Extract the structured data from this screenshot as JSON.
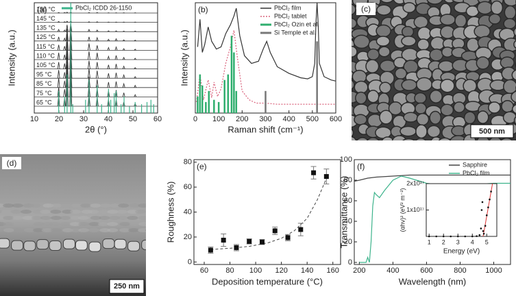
{
  "chart_data": [
    {
      "type": "line",
      "panel": "(a)",
      "stacked": true,
      "xlabel": "2θ (°)",
      "ylabel": "Intensity (a.u.)",
      "xlim": [
        10,
        60
      ],
      "xticks": [
        10,
        20,
        30,
        40,
        50,
        60
      ],
      "ylim": [
        0,
        100
      ],
      "y2lim": [
        0,
        100
      ],
      "x": [
        19.9,
        22.3,
        23.3,
        24.8,
        32.2,
        35.5,
        40.1,
        43.2,
        46.3,
        50.9
      ],
      "series": [
        {
          "name": "155 °C",
          "color": "#333333",
          "style": "peaks",
          "values": [
            2,
            2,
            3,
            3,
            2,
            2,
            1,
            1,
            1,
            1
          ]
        },
        {
          "name": "145 °C",
          "color": "#333333",
          "style": "peaks",
          "values": [
            3,
            2,
            4,
            4,
            2,
            2,
            1,
            1,
            1,
            1
          ]
        },
        {
          "name": "135 °C",
          "color": "#333333",
          "style": "peaks",
          "values": [
            8,
            6,
            25,
            30,
            8,
            6,
            3,
            3,
            2,
            2
          ]
        },
        {
          "name": "125 °C",
          "color": "#333333",
          "style": "peaks",
          "values": [
            15,
            10,
            45,
            50,
            15,
            12,
            6,
            8,
            4,
            3
          ]
        },
        {
          "name": "115 °C",
          "color": "#333333",
          "style": "peaks",
          "values": [
            20,
            15,
            60,
            65,
            25,
            18,
            10,
            12,
            6,
            4
          ]
        },
        {
          "name": "110 °C",
          "color": "#333333",
          "style": "peaks",
          "values": [
            25,
            18,
            65,
            70,
            30,
            25,
            12,
            15,
            8,
            5
          ]
        },
        {
          "name": "105 °C",
          "color": "#333333",
          "style": "peaks",
          "values": [
            25,
            20,
            70,
            75,
            30,
            25,
            15,
            18,
            10,
            5
          ]
        },
        {
          "name": "95 °C",
          "color": "#333333",
          "style": "peaks",
          "values": [
            30,
            22,
            80,
            85,
            35,
            28,
            18,
            20,
            12,
            6
          ]
        },
        {
          "name": "85 °C",
          "color": "#333333",
          "style": "peaks",
          "values": [
            35,
            25,
            85,
            90,
            40,
            30,
            20,
            22,
            14,
            8
          ]
        },
        {
          "name": "75 °C",
          "color": "#333333",
          "style": "peaks",
          "values": [
            35,
            28,
            90,
            95,
            45,
            32,
            22,
            25,
            15,
            8
          ]
        },
        {
          "name": "65 °C",
          "color": "#333333",
          "style": "peaks",
          "values": [
            40,
            30,
            95,
            100,
            45,
            35,
            25,
            25,
            15,
            10
          ]
        },
        {
          "name": "PbCl₂ ICDD 26-1150",
          "color": "#3cb38b",
          "style": "stick",
          "axis": "y2",
          "x": [
            19.9,
            22.3,
            23.3,
            24.8,
            25.6,
            30.8,
            32.2,
            35.5,
            37.3,
            40.1,
            41.0,
            42.4,
            43.2,
            45.2,
            46.4,
            48.6,
            50.9,
            53.5,
            55.7,
            57.3,
            58.4
          ],
          "values": [
            20,
            15,
            35,
            100,
            8,
            12,
            30,
            25,
            8,
            22,
            12,
            18,
            20,
            8,
            15,
            6,
            10,
            8,
            10,
            12,
            8
          ]
        }
      ]
    },
    {
      "type": "line",
      "panel": "(b)",
      "xlabel": "Raman shift (cm⁻¹)",
      "ylabel": "Intensity (a.u.)",
      "xlim": [
        0,
        600
      ],
      "xticks": [
        0,
        100,
        200,
        300,
        400,
        500,
        600
      ],
      "ylim": [
        0,
        100
      ],
      "series": [
        {
          "name": "PbCl₂ film",
          "color": "#333333",
          "style": "line",
          "x": [
            10,
            20,
            30,
            40,
            55,
            70,
            90,
            110,
            130,
            150,
            165,
            175,
            190,
            210,
            240,
            270,
            290,
            305,
            320,
            350,
            400,
            450,
            480,
            500,
            510,
            515,
            520,
            525,
            530,
            550,
            580,
            600
          ],
          "values": [
            60,
            85,
            55,
            62,
            78,
            65,
            58,
            60,
            72,
            80,
            88,
            95,
            70,
            52,
            45,
            47,
            58,
            65,
            55,
            42,
            36,
            32,
            31,
            33,
            45,
            80,
            100,
            80,
            45,
            33,
            30,
            29
          ]
        },
        {
          "name": "PbCl₂ tablet",
          "color": "#d9607a",
          "style": "dotted",
          "x": [
            5,
            20,
            35,
            55,
            70,
            80,
            95,
            110,
            130,
            150,
            165,
            180,
            200,
            230,
            260,
            300,
            350,
            400,
            500,
            600
          ],
          "values": [
            10,
            35,
            12,
            30,
            14,
            28,
            15,
            22,
            45,
            60,
            75,
            50,
            20,
            12,
            9,
            9,
            8,
            8,
            8,
            8
          ]
        },
        {
          "name": "PbCl₂ Ozin et al.",
          "color": "#2fae6e",
          "style": "stick",
          "x": [
            10,
            20,
            30,
            45,
            58,
            80,
            100,
            125,
            140,
            155,
            165,
            175
          ],
          "values": [
            15,
            35,
            25,
            10,
            20,
            12,
            10,
            30,
            35,
            70,
            55,
            20
          ]
        },
        {
          "name": "Si Temple et al.",
          "color": "#777777",
          "style": "stick",
          "x": [
            300,
            520
          ],
          "values": [
            20,
            65
          ]
        }
      ]
    },
    {
      "type": "scatter",
      "panel": "(e)",
      "xlabel": "Deposition temperature (°C)",
      "ylabel": "Roughness (%)",
      "xlim": [
        52,
        166
      ],
      "xticks": [
        60,
        80,
        100,
        120,
        140,
        160
      ],
      "ylim": [
        -2,
        82
      ],
      "yticks": [
        0,
        20,
        40,
        60,
        80
      ],
      "x": [
        65,
        75,
        85,
        95,
        105,
        115,
        125,
        135,
        145,
        155
      ],
      "values": [
        9.5,
        17.5,
        11.5,
        16.5,
        16,
        25,
        19.5,
        26,
        71.5,
        68.5
      ],
      "errors": [
        2.5,
        5,
        2.5,
        2,
        2,
        3,
        2.5,
        5,
        5,
        6
      ],
      "color": "#111111",
      "fit": {
        "x": [
          65,
          80,
          95,
          110,
          120,
          130,
          140,
          148,
          155
        ],
        "values": [
          10,
          11,
          12.5,
          15.5,
          19,
          25,
          35,
          50,
          67
        ]
      }
    },
    {
      "type": "line",
      "panel": "(f)",
      "xlabel": "Wavelength (nm)",
      "ylabel": "Transmittance (%)",
      "xlim": [
        170,
        1100
      ],
      "xticks": [
        200,
        400,
        600,
        800,
        1000
      ],
      "ylim": [
        -2,
        100
      ],
      "yticks": [
        0,
        20,
        40,
        60,
        80,
        100
      ],
      "series": [
        {
          "name": "Sapphire",
          "color": "#444444",
          "style": "line",
          "x": [
            170,
            200,
            250,
            300,
            400,
            500,
            600,
            700,
            800,
            900,
            1000,
            1100
          ],
          "values": [
            79,
            80,
            82,
            83,
            84,
            85,
            85,
            85,
            85,
            85,
            85,
            85
          ]
        },
        {
          "name": "PbCl₂ film",
          "color": "#3cb38b",
          "style": "line",
          "x": [
            200,
            240,
            250,
            260,
            270,
            280,
            290,
            300,
            320,
            350,
            400,
            450,
            500,
            600,
            700,
            800,
            900,
            1000,
            1100
          ],
          "values": [
            0,
            0,
            5,
            0,
            20,
            55,
            68,
            66,
            63,
            70,
            80,
            84,
            82,
            77,
            75,
            75,
            76,
            77,
            77
          ]
        }
      ]
    },
    {
      "type": "scatter",
      "xlabel": "Energy (eV)",
      "ylabel": "(αhν)² (eV² m⁻²)",
      "xlim": [
        0.8,
        5.7
      ],
      "xticks": [
        1,
        2,
        3,
        4,
        5
      ],
      "ylim": [
        0,
        2e+17
      ],
      "yticks": [
        {
          "value": 1e+17,
          "label": "1x10¹⁷"
        },
        {
          "value": 2e+17,
          "label": "2x10¹⁷"
        }
      ],
      "x": [
        1,
        1.5,
        2,
        2.5,
        3,
        3.5,
        4,
        4.3,
        4.5,
        4.6,
        4.65,
        4.7,
        4.75,
        4.8,
        4.9,
        5.0,
        5.1,
        5.2,
        5.3
      ],
      "values": [
        0,
        0,
        0,
        0,
        0,
        0,
        0,
        1000000000000000.0,
        5000000000000000.0,
        3e+16,
        1e+17,
        1.3e+17,
        2e+16,
        1e+16,
        4e+16,
        8e+16,
        1.1e+17,
        1.4e+17,
        1.7e+17
      ],
      "color": "#111111",
      "fit": {
        "x": [
          4.75,
          5.4
        ],
        "values": [
          0,
          2e+17
        ]
      }
    }
  ],
  "images": [
    {
      "label": "(c)",
      "scale_bar": "500 nm"
    },
    {
      "label": "(d)",
      "scale_bar": "250 nm"
    }
  ]
}
